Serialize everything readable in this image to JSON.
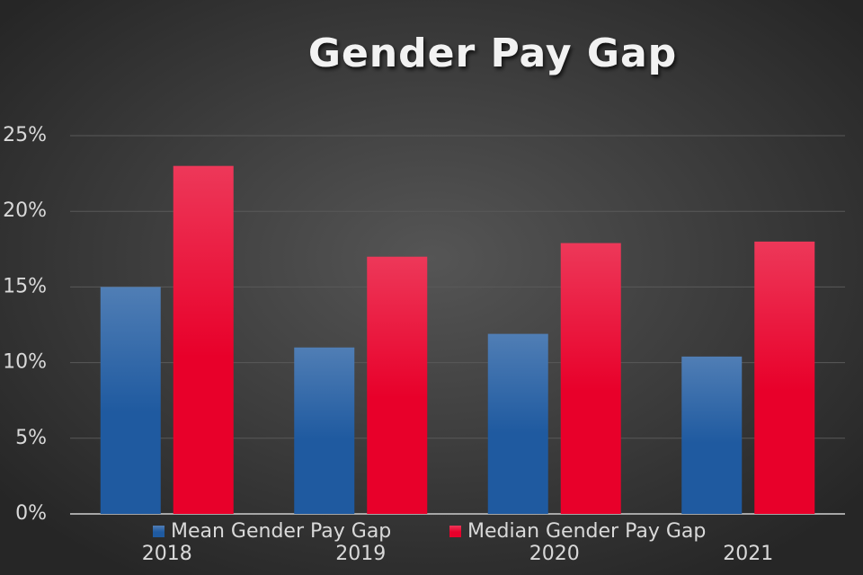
{
  "chart_data": {
    "type": "bar",
    "title": "Gender Pay Gap",
    "categories": [
      "2018",
      "2019",
      "2020",
      "2021"
    ],
    "series": [
      {
        "name": "Mean Gender Pay Gap",
        "color": "#1f5aa0",
        "values": [
          15,
          11,
          11.9,
          10.4
        ]
      },
      {
        "name": "Median Gender Pay Gap",
        "color": "#e8002a",
        "values": [
          23,
          17,
          17.9,
          18
        ]
      }
    ],
    "ylim": [
      0,
      25
    ],
    "yticks": [
      {
        "value": 0,
        "label": "0%"
      },
      {
        "value": 5,
        "label": "5%"
      },
      {
        "value": 10,
        "label": "10%"
      },
      {
        "value": 15,
        "label": "15%"
      },
      {
        "value": 20,
        "label": "20%"
      },
      {
        "value": 25,
        "label": "25%"
      }
    ],
    "grid": true
  }
}
